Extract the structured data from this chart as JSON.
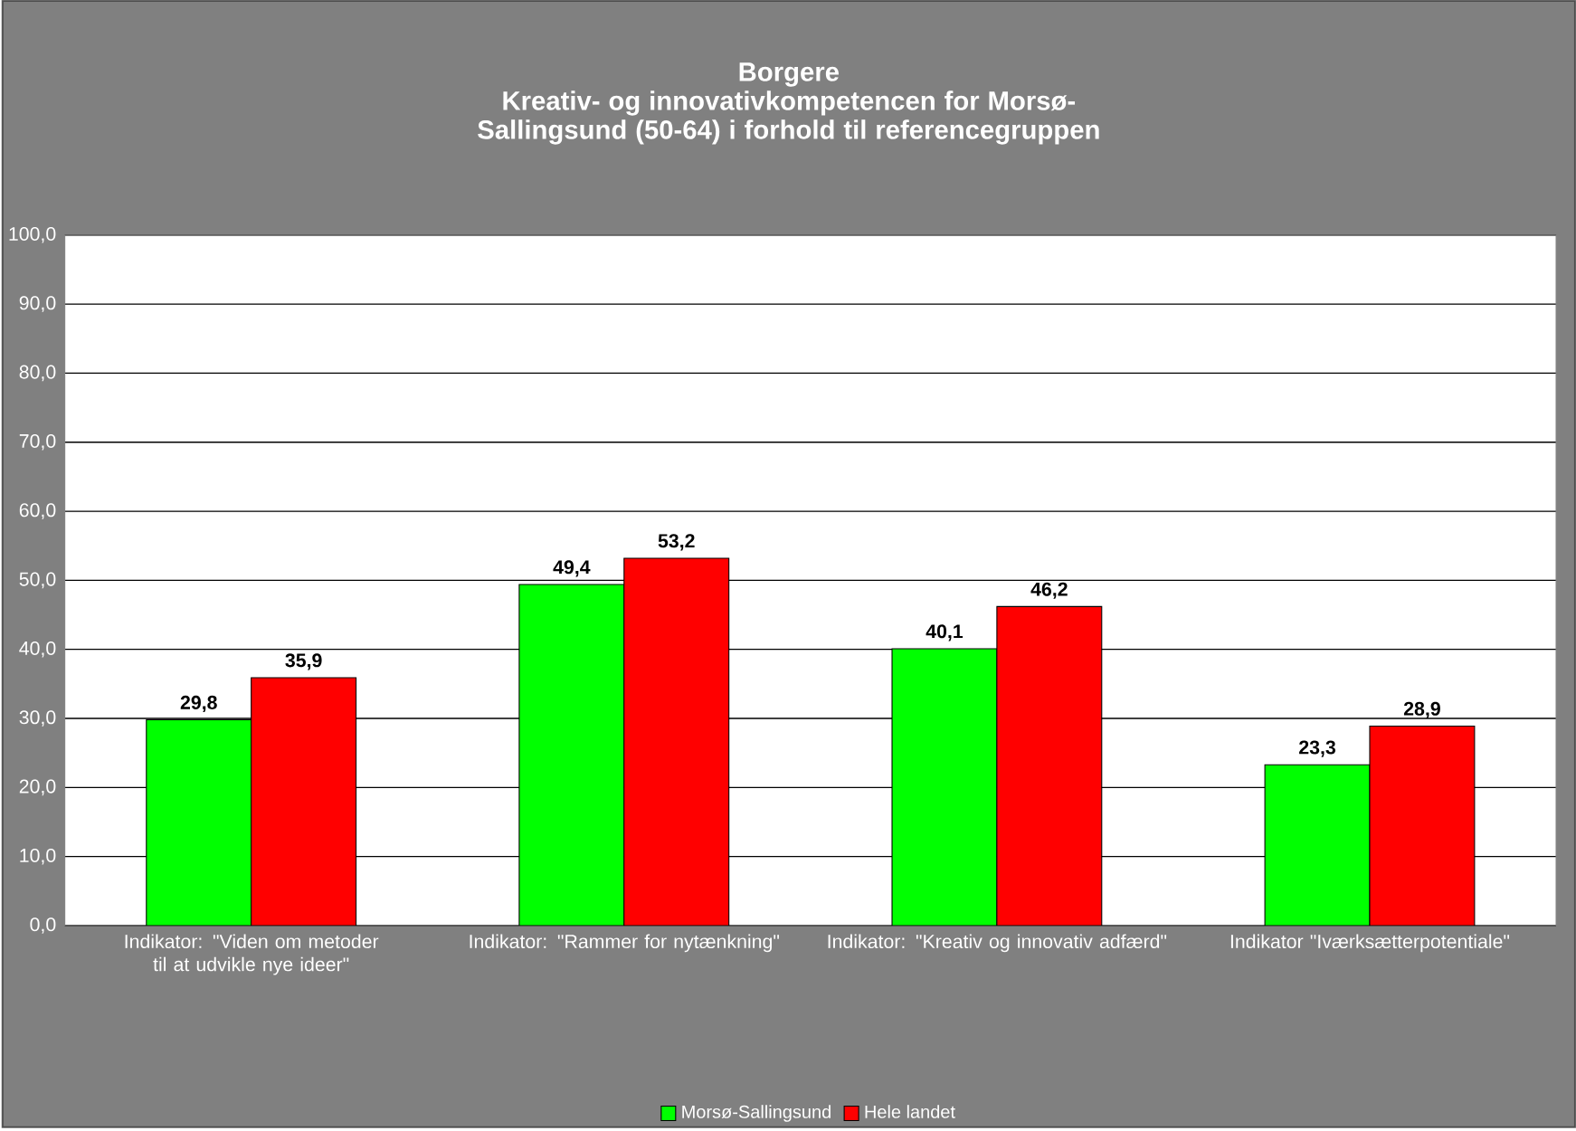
{
  "chart_data": {
    "type": "bar",
    "title": "Borgere",
    "subtitle": "Kreativ- og innovativkompetencen for Morsø-Sallingsund (50-64) i forhold til referencegruppen",
    "categories": [
      "Indikator: \"Viden om metoder til at udvikle nye ideer\"",
      "Indikator: \"Rammer for nytænkning\"",
      "Indikator: \"Kreativ og innovativ adfærd\"",
      "Indikator \"Iværksætterpotentiale\""
    ],
    "series": [
      {
        "name": "Morsø-Sallingsund",
        "color": "#00ff00",
        "values": [
          29.8,
          49.4,
          40.1,
          23.3
        ],
        "value_labels": [
          "29,8",
          "49,4",
          "40,1",
          "23,3"
        ]
      },
      {
        "name": "Hele landet",
        "color": "#ff0000",
        "values": [
          35.9,
          53.2,
          46.2,
          28.9
        ],
        "value_labels": [
          "35,9",
          "53,2",
          "46,2",
          "28,9"
        ]
      }
    ],
    "ylim": [
      0,
      100
    ],
    "yticks": [
      {
        "value": 0,
        "label": "0,0"
      },
      {
        "value": 10,
        "label": "10,0"
      },
      {
        "value": 20,
        "label": "20,0"
      },
      {
        "value": 30,
        "label": "30,0"
      },
      {
        "value": 40,
        "label": "40,0"
      },
      {
        "value": 50,
        "label": "50,0"
      },
      {
        "value": 60,
        "label": "60,0"
      },
      {
        "value": 70,
        "label": "70,0"
      },
      {
        "value": 80,
        "label": "80,0"
      },
      {
        "value": 90,
        "label": "90,0"
      },
      {
        "value": 100,
        "label": "100,0"
      }
    ],
    "grid": "y",
    "legend": "bottom"
  }
}
